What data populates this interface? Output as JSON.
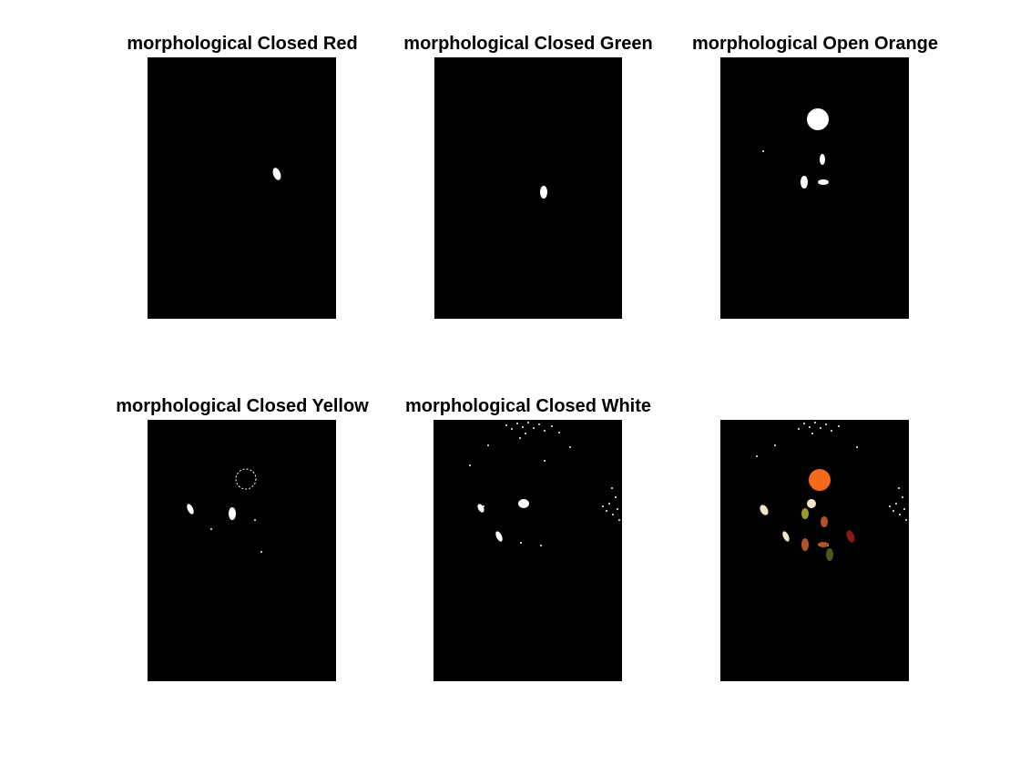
{
  "figure": {
    "panels": [
      {
        "title": "morphological Closed Red"
      },
      {
        "title": "morphological Closed Green"
      },
      {
        "title": "morphological Open Orange"
      },
      {
        "title": "morphological Closed Yellow"
      },
      {
        "title": "morphological Closed White"
      },
      {
        "title": ""
      }
    ]
  },
  "colors": {
    "mask_background": "#000000",
    "mask_foreground": "#ffffff",
    "orange": "#f26a1b",
    "dark_red": "#8a1a14",
    "olive": "#9a9a2a",
    "brown": "#b0542a",
    "dark_green": "#4a5a1a",
    "cream": "#efe6c8"
  }
}
